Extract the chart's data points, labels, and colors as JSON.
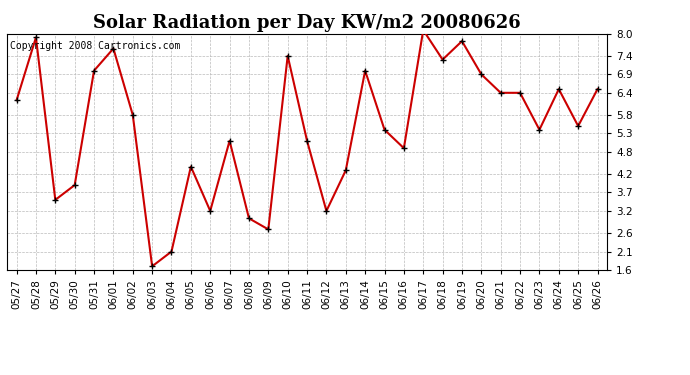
{
  "title": "Solar Radiation per Day KW/m2 20080626",
  "copyright_text": "Copyright 2008 Cartronics.com",
  "dates": [
    "05/27",
    "05/28",
    "05/29",
    "05/30",
    "05/31",
    "06/01",
    "06/02",
    "06/03",
    "06/04",
    "06/05",
    "06/06",
    "06/07",
    "06/08",
    "06/09",
    "06/10",
    "06/11",
    "06/12",
    "06/13",
    "06/14",
    "06/15",
    "06/16",
    "06/17",
    "06/18",
    "06/19",
    "06/20",
    "06/21",
    "06/22",
    "06/23",
    "06/24",
    "06/25",
    "06/26"
  ],
  "values": [
    6.2,
    7.9,
    3.5,
    3.9,
    7.0,
    7.6,
    5.8,
    1.7,
    2.1,
    4.4,
    3.2,
    5.1,
    3.0,
    2.7,
    7.4,
    5.1,
    3.2,
    4.3,
    7.0,
    5.4,
    4.9,
    8.1,
    7.3,
    7.8,
    6.9,
    6.4,
    6.4,
    5.4,
    6.5,
    5.5,
    6.5
  ],
  "line_color": "#cc0000",
  "marker_color": "#000000",
  "background_color": "#ffffff",
  "grid_color": "#bbbbbb",
  "yticks": [
    1.6,
    2.1,
    2.6,
    3.2,
    3.7,
    4.2,
    4.8,
    5.3,
    5.8,
    6.4,
    6.9,
    7.4,
    8.0
  ],
  "ymin": 1.6,
  "ymax": 8.0,
  "title_fontsize": 13,
  "tick_fontsize": 7.5,
  "copyright_fontsize": 7
}
